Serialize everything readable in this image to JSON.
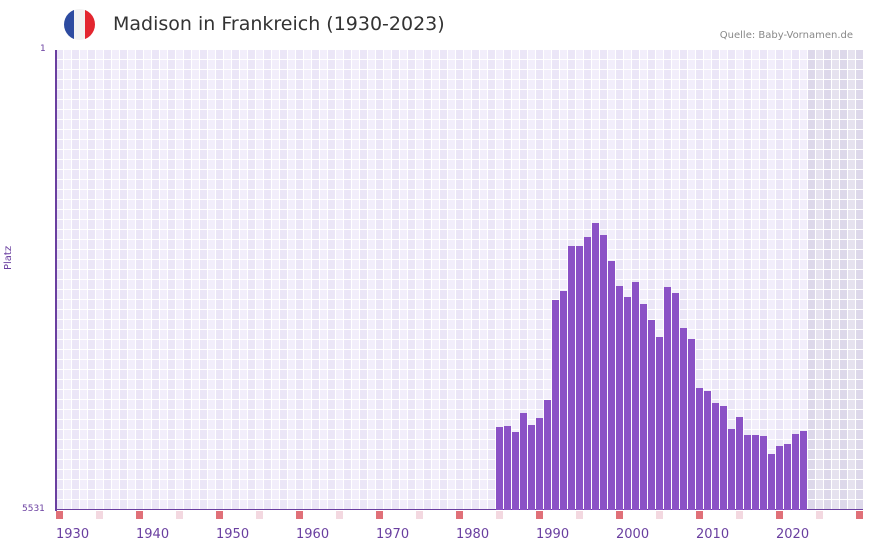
{
  "header": {
    "title": "Madison in Frankreich (1930-2023)",
    "source": "Quelle: Baby-Vornamen.de",
    "flag_colors": [
      "#2d4ba0",
      "#f2f2f2",
      "#e3262f"
    ]
  },
  "axes": {
    "y_top_label": "1",
    "y_bottom_label": "5531",
    "y_title": "Platz",
    "x_ticks": [
      "1930",
      "1940",
      "1950",
      "1960",
      "1970",
      "1980",
      "1990",
      "2000",
      "2010",
      "2020"
    ]
  },
  "colors": {
    "bar": "#8b52c6",
    "axis": "#6a3fa0",
    "grid_a": "#f2eefb",
    "grid_b": "#ebe6f7",
    "future_a": "#e6e2ef",
    "future_b": "#ddd8ea",
    "decade_marker": "#e07078",
    "half_decade_marker": "#f3d8e0"
  },
  "chart_data": {
    "type": "bar",
    "title": "Madison in Frankreich (1930-2023)",
    "xlabel": "",
    "ylabel": "Platz",
    "ylim": [
      5531,
      1
    ],
    "y_inverted": true,
    "x_range": [
      1930,
      2030
    ],
    "grid": true,
    "legend": null,
    "source": "Quelle: Baby-Vornamen.de",
    "categories": [
      "1985",
      "1986",
      "1987",
      "1988",
      "1989",
      "1990",
      "1991",
      "1992",
      "1993",
      "1994",
      "1995",
      "1996",
      "1997",
      "1998",
      "1999",
      "2000",
      "2001",
      "2002",
      "2003",
      "2004",
      "2005",
      "2006",
      "2007",
      "2008",
      "2009",
      "2010",
      "2011",
      "2012",
      "2013",
      "2014",
      "2015",
      "2016",
      "2017",
      "2018",
      "2019",
      "2020",
      "2021",
      "2022",
      "2023"
    ],
    "series": [
      {
        "name": "Platz",
        "values": [
          4533,
          4521,
          4593,
          4365,
          4509,
          4425,
          4208,
          3006,
          2898,
          2357,
          2357,
          2249,
          2081,
          2225,
          2537,
          2838,
          2970,
          2790,
          3054,
          3247,
          3451,
          2850,
          2922,
          3343,
          3475,
          4064,
          4100,
          4244,
          4280,
          4557,
          4413,
          4629,
          4629,
          4641,
          4857,
          4761,
          4737,
          4617,
          4581
        ]
      }
    ]
  }
}
